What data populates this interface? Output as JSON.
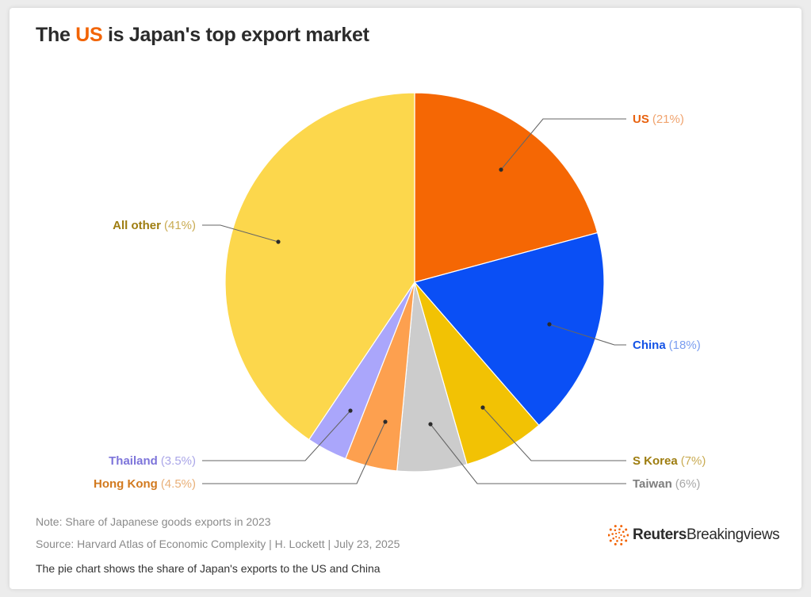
{
  "header": {
    "title_before": "The ",
    "title_highlight": "US",
    "title_after": " is Japan's top export market"
  },
  "chart_data": {
    "type": "pie",
    "slices": [
      {
        "label": "US",
        "value": 21,
        "display": "(21%)",
        "color": "#f56704",
        "name_color": "#e8620f",
        "pct_color": "#f0a36e",
        "side": "right"
      },
      {
        "label": "China",
        "value": 18,
        "display": "(18%)",
        "color": "#0a4ff5",
        "name_color": "#1453e6",
        "pct_color": "#7b9ef0",
        "side": "right"
      },
      {
        "label": "S Korea",
        "value": 7,
        "display": "(7%)",
        "color": "#f2c204",
        "name_color": "#9e7d10",
        "pct_color": "#c9ab52",
        "side": "right"
      },
      {
        "label": "Taiwan",
        "value": 6,
        "display": "(6%)",
        "color": "#cccccc",
        "name_color": "#7d7d7d",
        "pct_color": "#a8a8a8",
        "side": "right"
      },
      {
        "label": "Hong Kong",
        "value": 4.5,
        "display": "(4.5%)",
        "color": "#fda04f",
        "name_color": "#d27a1f",
        "pct_color": "#e9b079",
        "side": "left"
      },
      {
        "label": "Thailand",
        "value": 3.5,
        "display": "(3.5%)",
        "color": "#aaa6fb",
        "name_color": "#7d74da",
        "pct_color": "#aaa6e8",
        "side": "left"
      },
      {
        "label": "All other",
        "value": 41,
        "display": "(41%)",
        "color": "#fcd74c",
        "name_color": "#9e7d10",
        "pct_color": "#c9ab52",
        "side": "left"
      }
    ]
  },
  "footer": {
    "note": "Note: Share of Japanese goods exports in 2023",
    "source": "Source: Harvard Atlas of Economic Complexity | H. Lockett | July 23, 2025",
    "caption": "The pie chart shows the share of Japan's exports to the US and China"
  },
  "brand": {
    "name_bold": "Reuters",
    "name_regular": "Breakingviews",
    "logo_icon": "reuters-dots-logo",
    "logo_color": "#f26405"
  }
}
